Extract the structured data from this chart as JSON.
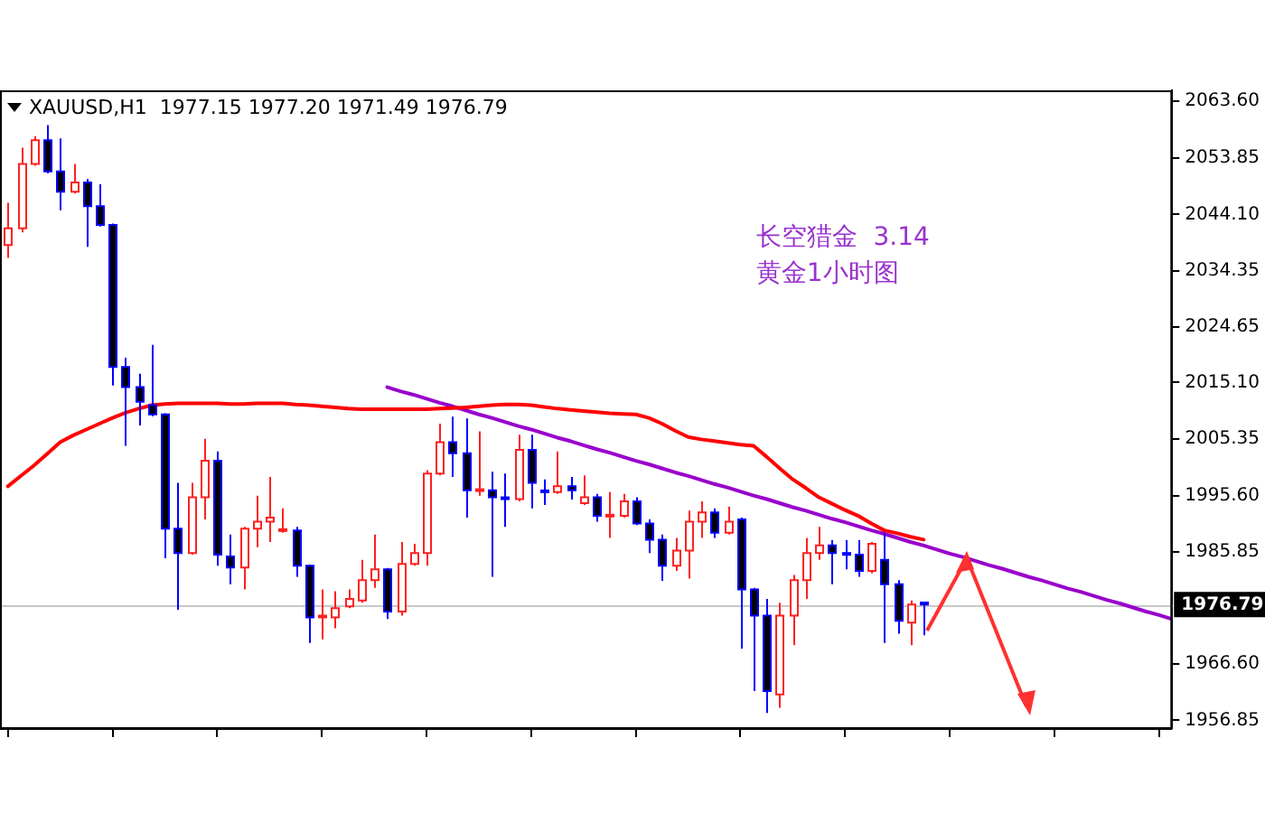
{
  "chart_data": {
    "type": "candlestick",
    "title": "XAUUSD,H1  1977.15 1977.20 1971.49 1976.79",
    "categories": [
      null,
      null,
      null,
      null,
      null,
      null,
      null,
      null,
      null,
      null,
      null,
      null,
      null,
      null,
      null,
      null,
      null,
      null,
      null,
      null,
      null,
      null,
      null,
      null,
      null,
      null,
      null,
      null,
      null,
      null,
      null,
      null,
      null,
      null,
      null,
      null,
      null,
      null,
      null,
      null,
      null,
      null,
      null,
      null,
      null,
      null,
      null,
      null,
      null,
      null,
      null,
      null,
      null,
      null,
      null,
      null,
      null,
      null,
      null,
      null,
      null,
      null,
      null,
      null,
      null,
      null,
      null,
      null,
      null,
      null,
      null,
      null,
      null,
      null,
      null,
      null,
      null,
      null,
      null,
      null,
      null,
      null,
      null,
      null,
      null,
      null,
      null,
      null,
      null,
      null
    ],
    "ohlc": [
      [
        2038.8,
        2046.1,
        2036.6,
        2041.7
      ],
      [
        2041.7,
        2055.6,
        2041.0,
        2052.8
      ],
      [
        2052.8,
        2057.6,
        2052.5,
        2056.9
      ],
      [
        2056.9,
        2059.5,
        2051.2,
        2051.5
      ],
      [
        2051.5,
        2057.2,
        2044.8,
        2048.0
      ],
      [
        2048.0,
        2052.8,
        2047.7,
        2049.6
      ],
      [
        2049.6,
        2050.2,
        2038.5,
        2045.5
      ],
      [
        2045.5,
        2049.3,
        2042.0,
        2042.3
      ],
      [
        2042.3,
        2042.5,
        2014.6,
        2017.8
      ],
      [
        2017.8,
        2019.4,
        2004.2,
        2014.3
      ],
      [
        2014.3,
        2016.6,
        2007.7,
        2011.8
      ],
      [
        2011.2,
        2021.6,
        2009.3,
        2009.6
      ],
      [
        2009.6,
        2009.8,
        1984.8,
        1989.9
      ],
      [
        1989.9,
        1997.8,
        1975.9,
        1985.7
      ],
      [
        1985.7,
        1997.8,
        1985.4,
        1995.3
      ],
      [
        1995.3,
        2005.4,
        1991.5,
        2001.6
      ],
      [
        2001.6,
        2003.2,
        1983.5,
        1985.4
      ],
      [
        1985.1,
        1988.9,
        1980.3,
        1983.2
      ],
      [
        1983.2,
        1990.2,
        1979.4,
        1989.9
      ],
      [
        1989.9,
        1995.6,
        1986.7,
        1991.1
      ],
      [
        1991.1,
        1998.8,
        1987.6,
        1991.8
      ],
      [
        1989.6,
        1993.4,
        1989.2,
        1989.8
      ],
      [
        1989.6,
        1990.2,
        1981.6,
        1983.5
      ],
      [
        1983.5,
        1983.7,
        1970.2,
        1974.6
      ],
      [
        1974.6,
        1979.4,
        1970.8,
        1974.9
      ],
      [
        1974.6,
        1979.1,
        1972.7,
        1976.2
      ],
      [
        1976.5,
        1979.4,
        1976.2,
        1977.8
      ],
      [
        1977.5,
        1984.5,
        1977.1,
        1981.0
      ],
      [
        1981.0,
        1988.9,
        1979.7,
        1982.9
      ],
      [
        1982.9,
        1983.1,
        1974.3,
        1975.6
      ],
      [
        1975.6,
        1987.6,
        1974.9,
        1983.8
      ],
      [
        1983.8,
        1987.3,
        1983.5,
        1985.7
      ],
      [
        1985.7,
        2000.0,
        1983.5,
        1999.4
      ],
      [
        1999.4,
        2008.0,
        1999.1,
        2004.8
      ],
      [
        2004.8,
        2009.2,
        1998.8,
        2002.9
      ],
      [
        2002.9,
        2008.9,
        1991.8,
        1996.5
      ],
      [
        1996.5,
        2006.7,
        1995.6,
        1996.7
      ],
      [
        1996.5,
        1999.7,
        1981.6,
        1995.3
      ],
      [
        1995.3,
        1999.4,
        1990.2,
        1995.1
      ],
      [
        1995.0,
        2006.1,
        1994.6,
        2003.5
      ],
      [
        2003.5,
        2006.1,
        1993.4,
        1997.8
      ],
      [
        1996.5,
        1998.4,
        1994.0,
        1996.2
      ],
      [
        1996.2,
        2003.2,
        1995.9,
        1997.2
      ],
      [
        1997.2,
        1998.8,
        1994.9,
        1996.5
      ],
      [
        1994.3,
        1999.1,
        1994.0,
        1995.3
      ],
      [
        1995.3,
        1995.9,
        1991.1,
        1992.1
      ],
      [
        1992.1,
        1996.2,
        1988.3,
        1992.3
      ],
      [
        1992.1,
        1995.9,
        1991.8,
        1994.6
      ],
      [
        1994.6,
        1995.3,
        1990.5,
        1990.8
      ],
      [
        1990.8,
        1991.5,
        1985.7,
        1988.0
      ],
      [
        1988.0,
        1988.9,
        1980.9,
        1983.5
      ],
      [
        1983.5,
        1988.3,
        1982.6,
        1986.1
      ],
      [
        1986.1,
        1993.0,
        1981.3,
        1991.1
      ],
      [
        1991.1,
        1994.6,
        1988.3,
        1992.7
      ],
      [
        1992.7,
        1993.4,
        1988.3,
        1989.2
      ],
      [
        1989.2,
        1993.7,
        1988.9,
        1991.1
      ],
      [
        1991.5,
        1991.8,
        1969.2,
        1979.4
      ],
      [
        1979.4,
        1979.7,
        1961.9,
        1974.9
      ],
      [
        1974.9,
        1977.8,
        1958.1,
        1961.9
      ],
      [
        1961.3,
        1977.1,
        1959.0,
        1974.9
      ],
      [
        1974.9,
        1981.9,
        1969.8,
        1981.0
      ],
      [
        1981.0,
        1988.3,
        1977.8,
        1985.7
      ],
      [
        1985.7,
        1990.2,
        1984.5,
        1987.0
      ],
      [
        1987.0,
        1987.9,
        1980.3,
        1985.7
      ],
      [
        1985.7,
        1987.9,
        1982.9,
        1985.5
      ],
      [
        1985.4,
        1987.9,
        1981.6,
        1982.6
      ],
      [
        1982.6,
        1987.6,
        1982.2,
        1987.3
      ],
      [
        1984.5,
        1989.2,
        1970.2,
        1980.3
      ],
      [
        1980.3,
        1981.0,
        1971.8,
        1974.0
      ],
      [
        1973.7,
        1977.5,
        1969.8,
        1976.8
      ],
      [
        1977.15,
        1977.2,
        1971.49,
        1976.79
      ],
      null,
      null,
      null,
      null,
      null,
      null,
      null,
      null,
      null,
      null,
      null,
      null,
      null,
      null,
      null,
      null,
      null,
      null,
      null
    ],
    "series": [
      {
        "type": "line",
        "color": "#ff0000",
        "values": [
          1997.2,
          1999.0,
          2000.8,
          2002.8,
          2004.8,
          2006.0,
          2007.0,
          2008.0,
          2009.0,
          2009.9,
          2010.6,
          2011.2,
          2011.4,
          2011.5,
          2011.5,
          2011.5,
          2011.5,
          2011.4,
          2011.4,
          2011.5,
          2011.5,
          2011.5,
          2011.3,
          2011.2,
          2011.0,
          2010.8,
          2010.6,
          2010.5,
          2010.5,
          2010.5,
          2010.5,
          2010.5,
          2010.5,
          2010.6,
          2010.7,
          2010.8,
          2011.0,
          2011.2,
          2011.3,
          2011.3,
          2011.2,
          2010.9,
          2010.6,
          2010.4,
          2010.2,
          2010.0,
          2009.8,
          2009.7,
          2009.6,
          2009.0,
          2008.0,
          2006.8,
          2005.7,
          2005.3,
          2005.0,
          2004.7,
          2004.4,
          2004.2,
          2002.3,
          2000.3,
          1998.4,
          1996.9,
          1995.3,
          1994.2,
          1993.1,
          1992.1,
          1990.8,
          1989.6,
          1989.1,
          1988.5,
          1988.0,
          null,
          null,
          null,
          null,
          null,
          null,
          null,
          null,
          null,
          null,
          null,
          null,
          null,
          null,
          null,
          null,
          null,
          null,
          null
        ]
      },
      {
        "type": "line",
        "color": "#9900cc",
        "values": [
          null,
          null,
          null,
          null,
          null,
          null,
          null,
          null,
          null,
          null,
          null,
          null,
          null,
          null,
          null,
          null,
          null,
          null,
          null,
          null,
          null,
          null,
          null,
          null,
          null,
          null,
          null,
          null,
          null,
          2014.3,
          2013.6,
          2013.0,
          2012.3,
          2011.6,
          2011.0,
          2010.3,
          2009.6,
          2009.0,
          2008.3,
          2007.6,
          2007.0,
          2006.3,
          2005.6,
          2005.0,
          2004.3,
          2003.6,
          2003.0,
          2002.3,
          2001.6,
          2001.0,
          2000.3,
          1999.6,
          1999.0,
          1998.3,
          1997.6,
          1997.0,
          1996.3,
          1995.6,
          1995.0,
          1994.3,
          1993.6,
          1993.0,
          1992.3,
          1991.6,
          1991.0,
          1990.3,
          1989.6,
          1989.0,
          1988.3,
          1987.6,
          1987.0,
          1986.3,
          1985.6,
          1985.0,
          1984.3,
          1983.6,
          1983.0,
          1982.3,
          1981.6,
          1981.0,
          1980.3,
          1979.6,
          1979.0,
          1978.3,
          1977.6,
          1977.0,
          1976.3,
          1975.6,
          1975.0,
          1974.3
        ]
      }
    ],
    "ylim": [
      1955.5,
      2065.5
    ],
    "yticks": [
      {
        "value": 2063.6,
        "label": "2063.60"
      },
      {
        "value": 2053.85,
        "label": "2053.85"
      },
      {
        "value": 2044.1,
        "label": "2044.10"
      },
      {
        "value": 2034.35,
        "label": "2034.35"
      },
      {
        "value": 2024.65,
        "label": "2024.65"
      },
      {
        "value": 2015.1,
        "label": "2015.10"
      },
      {
        "value": 2005.35,
        "label": "2005.35"
      },
      {
        "value": 1995.6,
        "label": "1995.60"
      },
      {
        "value": 1985.85,
        "label": "1985.85"
      },
      {
        "value": 1966.6,
        "label": "1966.60"
      },
      {
        "value": 1956.85,
        "label": "1956.85"
      }
    ],
    "ref_lines": [
      {
        "axis": "y",
        "value": 1976.79,
        "label": "1976.79",
        "color": "#c8c8c8"
      }
    ],
    "annotations": [
      "长空猎金  3.14",
      "黄金1小时图"
    ],
    "tick_labels": "y",
    "grid": false,
    "legend": false,
    "marker": "none",
    "line_style": "solid"
  }
}
